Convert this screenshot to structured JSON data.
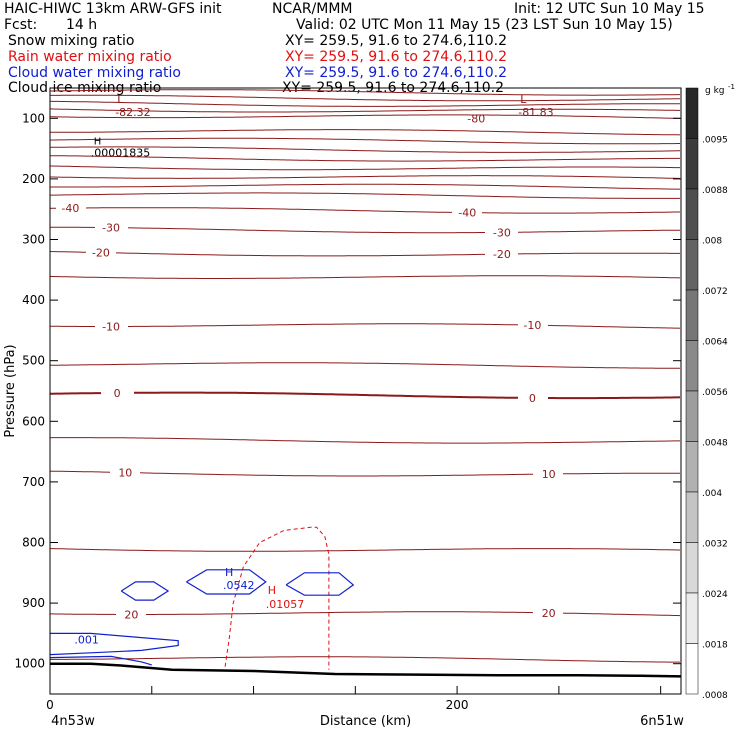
{
  "header": {
    "model": "HAIC-HIWC 13km ARW-GFS init",
    "org": "NCAR/MMM",
    "init": "Init: 12 UTC Sun 10 May 15",
    "fcst_label": "Fcst:",
    "fcst_value": "14 h",
    "valid": "Valid: 02 UTC Mon 11 May 15 (23 LST Sun 10 May 15)",
    "fields": [
      {
        "name": "Snow mixing ratio",
        "xy": "XY= 259.5, 91.6 to 274.6,110.2",
        "color": "#000000"
      },
      {
        "name": "Rain water mixing ratio",
        "xy": "XY= 259.5, 91.6 to 274.6,110.2",
        "color": "#e01010"
      },
      {
        "name": "Cloud water mixing ratio",
        "xy": "XY= 259.5, 91.6 to 274.6,110.2",
        "color": "#1020d0"
      },
      {
        "name": "Cloud ice mixing ratio",
        "xy": "XY= 259.5, 91.6 to 274.6,110.2",
        "color": "#000000"
      }
    ]
  },
  "chart_data": {
    "type": "cross-section contour",
    "xlabel": "Distance (km)",
    "ylabel": "Pressure (hPa)",
    "xlim": [
      0,
      310
    ],
    "ylim": [
      1050,
      50
    ],
    "x_ticks": [
      {
        "value": 0,
        "label": "0"
      },
      {
        "value": 200,
        "label": "200"
      }
    ],
    "y_ticks": [
      100,
      200,
      300,
      400,
      500,
      600,
      700,
      800,
      900,
      1000
    ],
    "x_endpoints": [
      "4n53w",
      "6n51w"
    ],
    "colorbar": {
      "unit": "g kg",
      "unit_exp": "-1",
      "labels": [
        ".0095",
        ".0088",
        ".008",
        ".0072",
        ".0064",
        ".0056",
        ".0048",
        ".004",
        ".0032",
        ".0024",
        ".0018",
        ".0008"
      ],
      "n_levels": 12
    },
    "temperature_contours": {
      "color": "#8b1a1a",
      "lines": [
        {
          "p": 55
        },
        {
          "p": 65
        },
        {
          "p": 75
        },
        {
          "p": 85
        },
        {
          "p": 95
        },
        {
          "p": 120
        },
        {
          "p": 135
        },
        {
          "p": 150
        },
        {
          "p": 165
        },
        {
          "p": 180
        },
        {
          "p": 195
        },
        {
          "p": 210
        },
        {
          "p": 225
        },
        {
          "p": 250,
          "label": "-40",
          "labels_at": [
            10,
            205
          ]
        },
        {
          "p": 283,
          "label": "-30",
          "labels_at": [
            30,
            222
          ]
        },
        {
          "p": 322,
          "label": "-20",
          "labels_at": [
            25,
            222
          ]
        },
        {
          "p": 360
        },
        {
          "p": 440,
          "label": "-10",
          "labels_at": [
            30,
            237
          ]
        },
        {
          "p": 505
        },
        {
          "p": 555,
          "label": "0",
          "labels_at": [
            33,
            237
          ],
          "bold": true
        },
        {
          "p": 630
        },
        {
          "p": 685,
          "label": "10",
          "labels_at": [
            37,
            245
          ]
        },
        {
          "p": 810
        },
        {
          "p": 915,
          "label": "20",
          "labels_at": [
            40,
            245
          ]
        },
        {
          "p": 990
        }
      ],
      "minima": [
        {
          "x": 34,
          "p": 85,
          "letter": "L",
          "value": "-82.32"
        },
        {
          "x": 232,
          "p": 85,
          "letter": "L",
          "value": "-81.83"
        }
      ],
      "extra_labels": [
        {
          "x": 205,
          "p": 107,
          "text": "-80"
        }
      ]
    },
    "snow_max": {
      "x": 22,
      "p": 150,
      "letter": "H",
      "value": ".00001835"
    },
    "rain_water": {
      "color": "#e01010",
      "contour": [
        [
          86,
          1005
        ],
        [
          88,
          960
        ],
        [
          90,
          900
        ],
        [
          95,
          840
        ],
        [
          103,
          800
        ],
        [
          115,
          780
        ],
        [
          128,
          775
        ],
        [
          131,
          775
        ],
        [
          135,
          790
        ],
        [
          137,
          820
        ],
        [
          137,
          880
        ],
        [
          137,
          940
        ],
        [
          137,
          1010
        ]
      ],
      "max": {
        "x": 107,
        "p": 895,
        "letter": "H",
        "value": ".01057"
      }
    },
    "cloud_water": {
      "color": "#1020d0",
      "contours": [
        [
          [
            35,
            880
          ],
          [
            42,
            865
          ],
          [
            51,
            865
          ],
          [
            58,
            880
          ],
          [
            51,
            895
          ],
          [
            42,
            895
          ],
          [
            35,
            880
          ]
        ],
        [
          [
            67,
            865
          ],
          [
            77,
            845
          ],
          [
            98,
            845
          ],
          [
            106,
            865
          ],
          [
            98,
            885
          ],
          [
            77,
            885
          ],
          [
            67,
            865
          ]
        ],
        [
          [
            116,
            870
          ],
          [
            125,
            850
          ],
          [
            142,
            850
          ],
          [
            149,
            870
          ],
          [
            142,
            887
          ],
          [
            125,
            887
          ],
          [
            116,
            870
          ]
        ],
        [
          [
            0,
            950
          ],
          [
            20,
            950
          ],
          [
            45,
            957
          ],
          [
            63,
            962
          ],
          [
            63,
            970
          ],
          [
            45,
            978
          ],
          [
            20,
            982
          ],
          [
            0,
            985
          ]
        ],
        [
          [
            0,
            990
          ],
          [
            30,
            988
          ],
          [
            45,
            997
          ],
          [
            50,
            1002
          ]
        ]
      ],
      "max": {
        "x": 86,
        "p": 865,
        "letter": "H",
        "value": ".0542"
      },
      "labels": [
        {
          "x": 12,
          "p": 967,
          "text": ".001"
        }
      ]
    },
    "terrain": [
      [
        0,
        1000
      ],
      [
        20,
        1000
      ],
      [
        35,
        1003
      ],
      [
        60,
        1010
      ],
      [
        100,
        1012
      ],
      [
        140,
        1017
      ],
      [
        180,
        1018
      ],
      [
        220,
        1019
      ],
      [
        260,
        1019
      ],
      [
        290,
        1020
      ],
      [
        310,
        1021
      ]
    ]
  }
}
